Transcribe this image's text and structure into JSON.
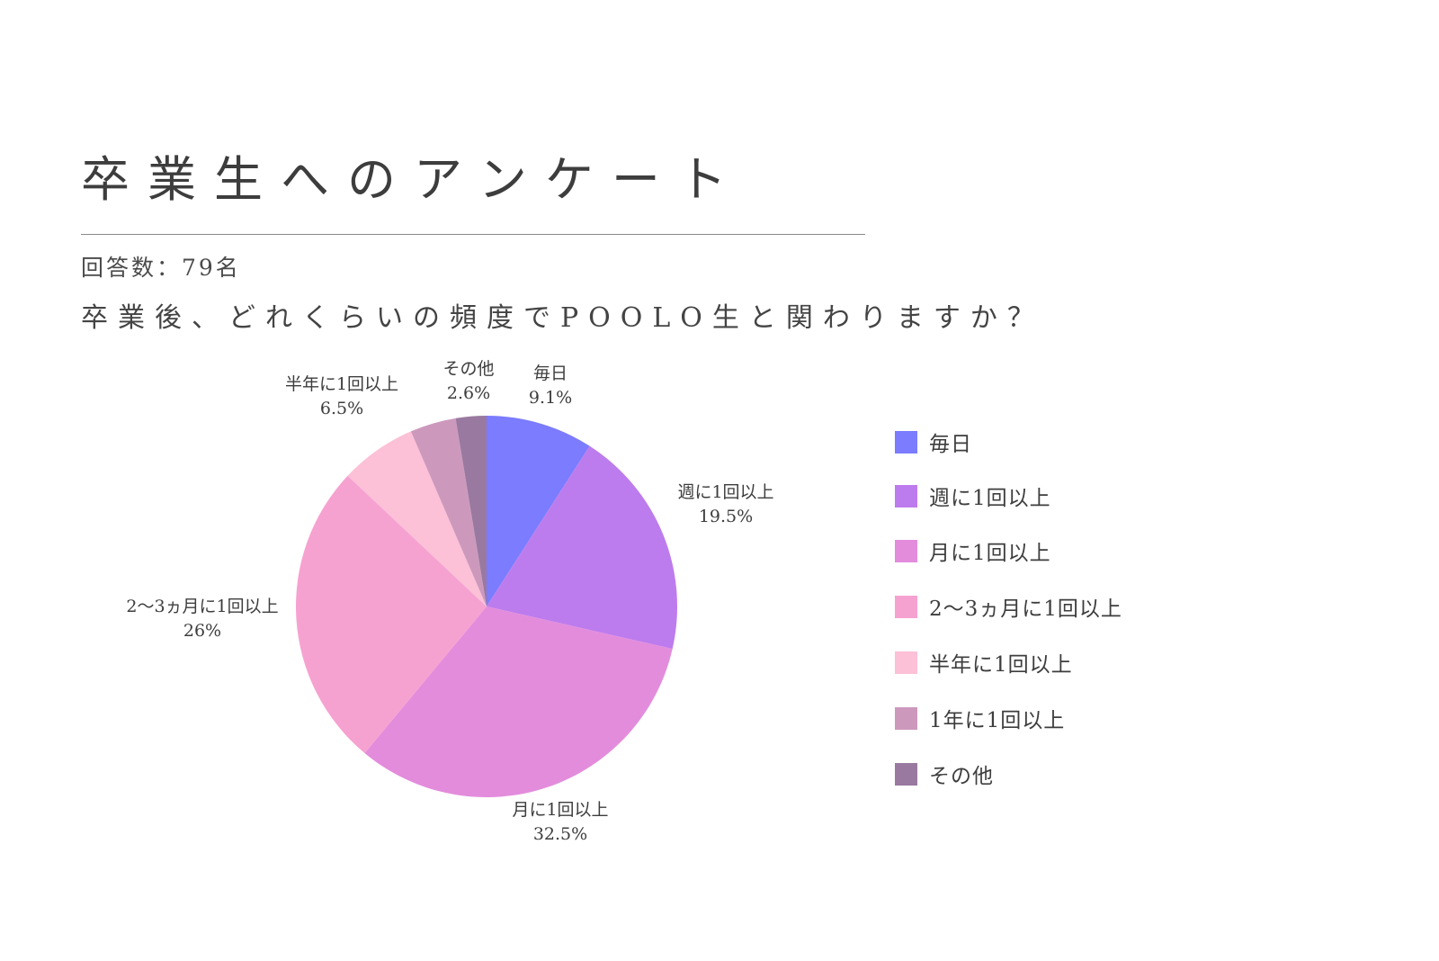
{
  "header": {
    "title": "卒業生へのアンケート",
    "response_count": "回答数：79名",
    "question": "卒業後、どれくらいの頻度でPOOLO生と関わりますか？"
  },
  "chart_data": {
    "type": "pie",
    "start_angle_deg": 0,
    "direction": "clockwise",
    "legend_position": "right",
    "slices": [
      {
        "label": "毎日",
        "value": 9.1,
        "value_label": "9.1%",
        "color": "#7b7cff"
      },
      {
        "label": "週に1回以上",
        "value": 19.5,
        "value_label": "19.5%",
        "color": "#bd7ced"
      },
      {
        "label": "月に1回以上",
        "value": 32.5,
        "value_label": "32.5%",
        "color": "#e38cdc"
      },
      {
        "label": "2〜3ヵ月に1回以上",
        "value": 26,
        "value_label": "26%",
        "color": "#f6a2d1"
      },
      {
        "label": "半年に1回以上",
        "value": 6.5,
        "value_label": "6.5%",
        "color": "#fcc0d7"
      },
      {
        "label": "1年に1回以上",
        "value": 3.9,
        "value_label": "",
        "color": "#cc99bd"
      },
      {
        "label": "その他",
        "value": 2.6,
        "value_label": "2.6%",
        "color": "#9a79a0"
      }
    ],
    "legend": [
      "毎日",
      "週に1回以上",
      "月に1回以上",
      "2〜3ヵ月に1回以上",
      "半年に1回以上",
      "1年に1回以上",
      "その他"
    ]
  }
}
